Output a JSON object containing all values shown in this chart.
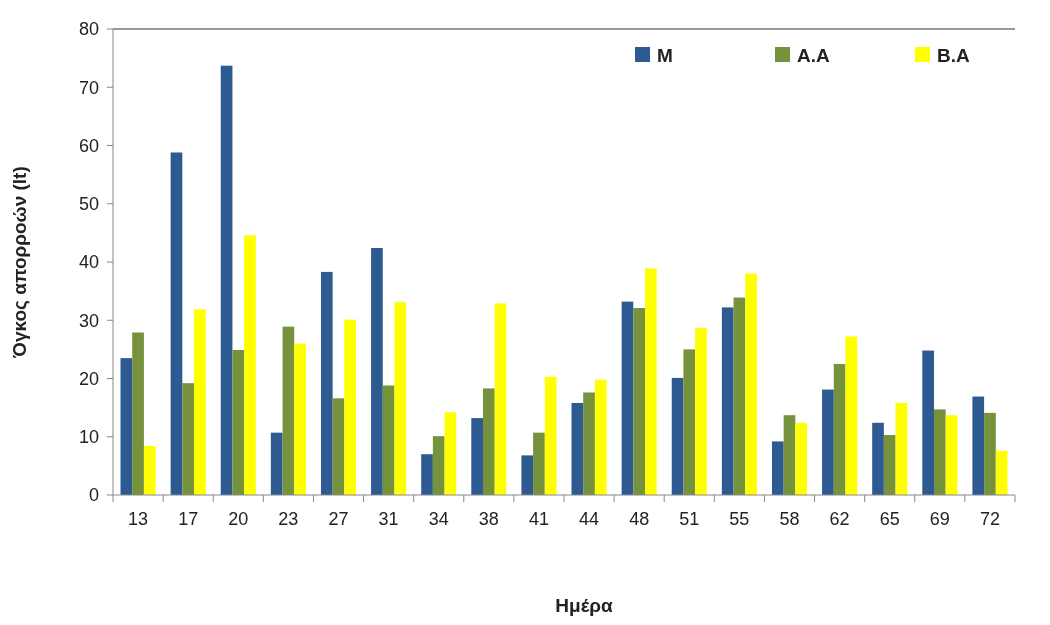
{
  "chart_data": {
    "type": "bar",
    "xlabel": "Ημέρα",
    "ylabel": "Όγκος απορροών (lt)",
    "categories": [
      "13",
      "17",
      "20",
      "23",
      "27",
      "31",
      "34",
      "38",
      "41",
      "44",
      "48",
      "51",
      "55",
      "58",
      "62",
      "65",
      "69",
      "72"
    ],
    "series": [
      {
        "name": "M",
        "color": "#2e5a92",
        "values": [
          23.5,
          58.8,
          73.7,
          10.7,
          38.3,
          42.4,
          7.0,
          13.2,
          6.8,
          15.8,
          33.2,
          20.1,
          32.2,
          9.2,
          18.1,
          12.4,
          24.8,
          16.9
        ]
      },
      {
        "name": "A.A",
        "color": "#76923c",
        "values": [
          27.9,
          19.2,
          24.9,
          28.9,
          16.6,
          18.8,
          10.1,
          18.3,
          10.7,
          17.6,
          32.1,
          25.0,
          33.9,
          13.7,
          22.5,
          10.3,
          14.7,
          14.1
        ]
      },
      {
        "name": "B.A",
        "color": "#ffff00",
        "values": [
          8.4,
          31.9,
          44.6,
          26.0,
          30.1,
          33.1,
          14.2,
          32.9,
          20.3,
          19.8,
          38.9,
          28.7,
          38.0,
          12.4,
          27.2,
          15.8,
          13.7,
          7.6
        ]
      }
    ],
    "ylim": [
      0,
      80
    ],
    "yticks": [
      0,
      10,
      20,
      30,
      40,
      50,
      60,
      70,
      80
    ],
    "grid": false,
    "legend": "top right"
  }
}
